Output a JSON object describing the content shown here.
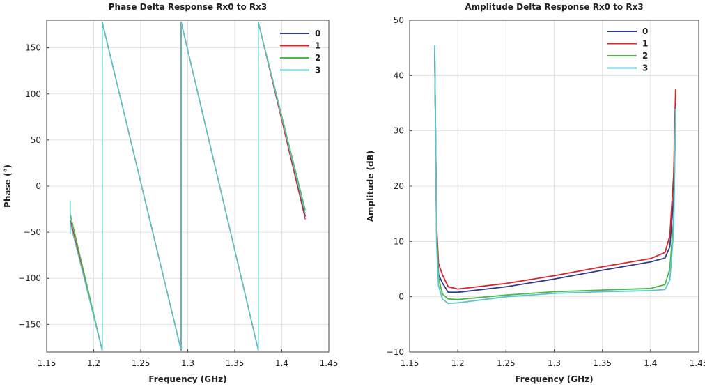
{
  "chart_data": [
    {
      "type": "line",
      "title": "Phase Delta Response Rx0 to Rx3",
      "xlabel": "Frequency (GHz)",
      "ylabel": "Phase (°)",
      "xlim": [
        1.15,
        1.45
      ],
      "ylim": [
        -180,
        180
      ],
      "xticks": [
        1.15,
        1.2,
        1.25,
        1.3,
        1.35,
        1.4,
        1.45
      ],
      "xtick_labels": [
        "1.15",
        "1.2",
        "1.25",
        "1.3",
        "1.35",
        "1.4",
        "1.45"
      ],
      "yticks": [
        -150,
        -100,
        -50,
        0,
        50,
        100,
        150
      ],
      "ytick_labels": [
        "−150",
        "−100",
        "−50",
        "0",
        "50",
        "100",
        "150"
      ],
      "grid": true,
      "legend": "top-right",
      "series": [
        {
          "name": "0",
          "color": "#2e3a8c",
          "x": [
            1.175,
            1.209,
            1.209,
            1.293,
            1.293,
            1.375,
            1.375,
            1.425
          ],
          "y": [
            -38,
            -178,
            178,
            -178,
            178,
            -178,
            178,
            -33
          ]
        },
        {
          "name": "1",
          "color": "#d9232d",
          "x": [
            1.175,
            1.209,
            1.209,
            1.293,
            1.293,
            1.375,
            1.375,
            1.425
          ],
          "y": [
            -36,
            -178,
            178,
            -178,
            178,
            -178,
            178,
            -36
          ]
        },
        {
          "name": "2",
          "color": "#4cb848",
          "x": [
            1.175,
            1.209,
            1.209,
            1.293,
            1.293,
            1.375,
            1.375,
            1.425
          ],
          "y": [
            -30,
            -178,
            178,
            -178,
            178,
            -178,
            178,
            -26
          ]
        },
        {
          "name": "3",
          "color": "#58c5cf",
          "x": [
            1.175,
            1.175,
            1.175,
            1.209,
            1.209,
            1.293,
            1.293,
            1.375,
            1.375,
            1.425
          ],
          "y": [
            -52,
            -16,
            -40,
            -178,
            178,
            -178,
            178,
            -178,
            178,
            -30
          ]
        }
      ]
    },
    {
      "type": "line",
      "title": "Amplitude Delta Response Rx0 to Rx3",
      "xlabel": "Frequency (GHz)",
      "ylabel": "Amplitude (dB)",
      "xlim": [
        1.15,
        1.45
      ],
      "ylim": [
        -10,
        50
      ],
      "xticks": [
        1.15,
        1.2,
        1.25,
        1.3,
        1.35,
        1.4,
        1.45
      ],
      "xtick_labels": [
        "1.15",
        "1.2",
        "1.25",
        "1.3",
        "1.35",
        "1.4",
        "1.45"
      ],
      "yticks": [
        -10,
        0,
        10,
        20,
        30,
        40,
        50
      ],
      "ytick_labels": [
        "−10",
        "0",
        "10",
        "20",
        "30",
        "40",
        "50"
      ],
      "grid": true,
      "legend": "top-right",
      "series": [
        {
          "name": "0",
          "color": "#2e3a8c",
          "x": [
            1.176,
            1.178,
            1.18,
            1.184,
            1.19,
            1.2,
            1.25,
            1.3,
            1.35,
            1.4,
            1.415,
            1.42,
            1.424,
            1.426
          ],
          "y": [
            44,
            12,
            4,
            2.5,
            0.8,
            0.8,
            1.8,
            3.2,
            4.8,
            6.3,
            7,
            9,
            18,
            35
          ]
        },
        {
          "name": "1",
          "color": "#d9232d",
          "x": [
            1.176,
            1.178,
            1.18,
            1.184,
            1.19,
            1.2,
            1.25,
            1.3,
            1.35,
            1.4,
            1.415,
            1.42,
            1.424,
            1.426
          ],
          "y": [
            44,
            13,
            6,
            4,
            1.8,
            1.4,
            2.4,
            3.8,
            5.4,
            6.9,
            8,
            11,
            22,
            37.5
          ]
        },
        {
          "name": "2",
          "color": "#4cb848",
          "x": [
            1.176,
            1.178,
            1.18,
            1.184,
            1.19,
            1.2,
            1.25,
            1.3,
            1.35,
            1.4,
            1.415,
            1.42,
            1.424,
            1.426
          ],
          "y": [
            45,
            12,
            3.5,
            0.5,
            -0.4,
            -0.5,
            0.3,
            0.9,
            1.2,
            1.5,
            2.2,
            5,
            14,
            33
          ]
        },
        {
          "name": "3",
          "color": "#58c5cf",
          "x": [
            1.176,
            1.178,
            1.18,
            1.184,
            1.19,
            1.2,
            1.25,
            1.3,
            1.35,
            1.4,
            1.415,
            1.42,
            1.424,
            1.426
          ],
          "y": [
            45.5,
            10,
            2,
            -0.4,
            -1.2,
            -1.1,
            0,
            0.6,
            0.9,
            1.1,
            1.3,
            3,
            12,
            34
          ]
        }
      ]
    }
  ]
}
